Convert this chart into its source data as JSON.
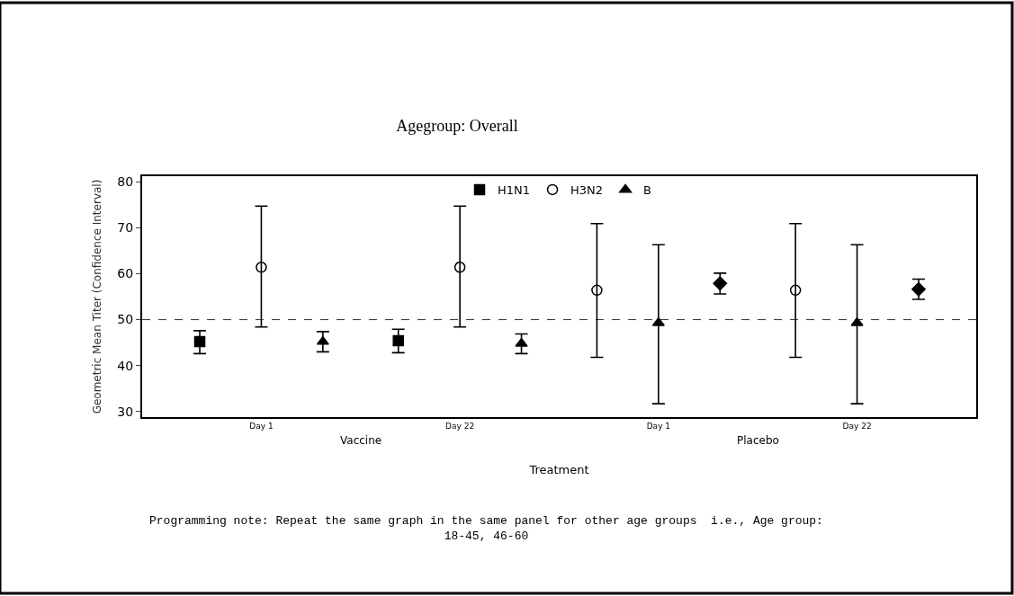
{
  "chart_data": {
    "type": "scatter",
    "title": "Agegroup: Overall",
    "xlabel": "Treatment",
    "ylabel": "Geometric Mean Titer (Confidence Interval)",
    "categories": [
      "Day 1",
      "Day 22",
      "Day 1",
      "Day 22"
    ],
    "series": [
      {
        "name": "H1N1",
        "color": "#000000",
        "marker": "square",
        "values": [
          45.2,
          45.4,
          null,
          null
        ],
        "errors": [
          [
            42.6,
            47.6
          ],
          [
            42.8,
            47.9
          ],
          null,
          null
        ]
      },
      {
        "name": "H3N2",
        "color": "#000000",
        "marker": "circle",
        "values": [
          61.4,
          61.4,
          56.4,
          56.4
        ],
        "errors": [
          [
            48.4,
            74.7
          ],
          [
            48.4,
            74.7
          ],
          [
            41.8,
            70.9
          ],
          [
            41.8,
            70.9
          ]
        ]
      },
      {
        "name": "B",
        "color": "#000000",
        "marker": "triangle",
        "values": [
          45.2,
          44.8,
          49.3,
          49.3
        ],
        "errors": [
          [
            43.0,
            47.4
          ],
          [
            42.6,
            46.9
          ],
          [
            31.7,
            66.3
          ],
          [
            31.7,
            66.3
          ]
        ]
      },
      {
        "color": "#000000",
        "marker": "diamond",
        "values": [
          null,
          null,
          57.9,
          56.6
        ],
        "errors": [
          null,
          null,
          [
            55.6,
            60.1
          ],
          [
            54.4,
            58.8
          ]
        ]
      }
    ],
    "ylim": [
      28.8,
      81.2
    ],
    "yticks": [
      30,
      40,
      50,
      60,
      70,
      80
    ],
    "ref_lines": [
      {
        "axis": "y",
        "value": 50,
        "color": "#333333",
        "line_style": "dashed"
      }
    ],
    "annotations": [
      "Vaccine",
      "Placebo",
      "Programming note: Repeat the same graph in the same panel for other age groups  i.e., Age group: 18-45, 46-60"
    ],
    "legend": "top",
    "grid": false
  }
}
